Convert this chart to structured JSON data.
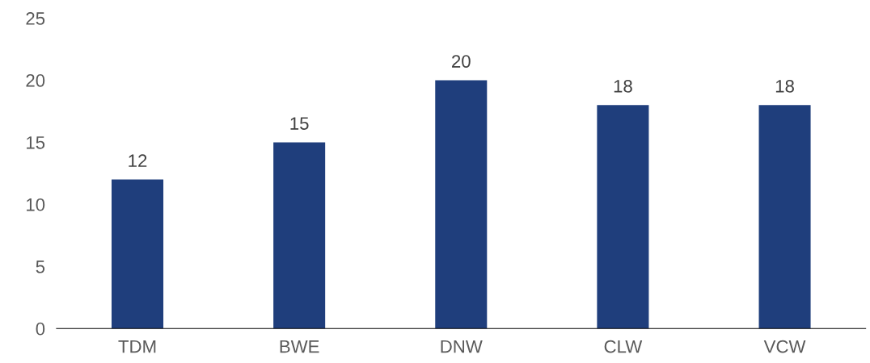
{
  "chart_data": {
    "type": "bar",
    "categories": [
      "TDM",
      "BWE",
      "DNW",
      "CLW",
      "VCW"
    ],
    "values": [
      12,
      15,
      20,
      18,
      18
    ],
    "color": "#1f3e7c",
    "ylim": [
      0,
      25
    ],
    "yticks": [
      0,
      5,
      10,
      15,
      20,
      25
    ],
    "data_labels": true,
    "grid": false
  }
}
